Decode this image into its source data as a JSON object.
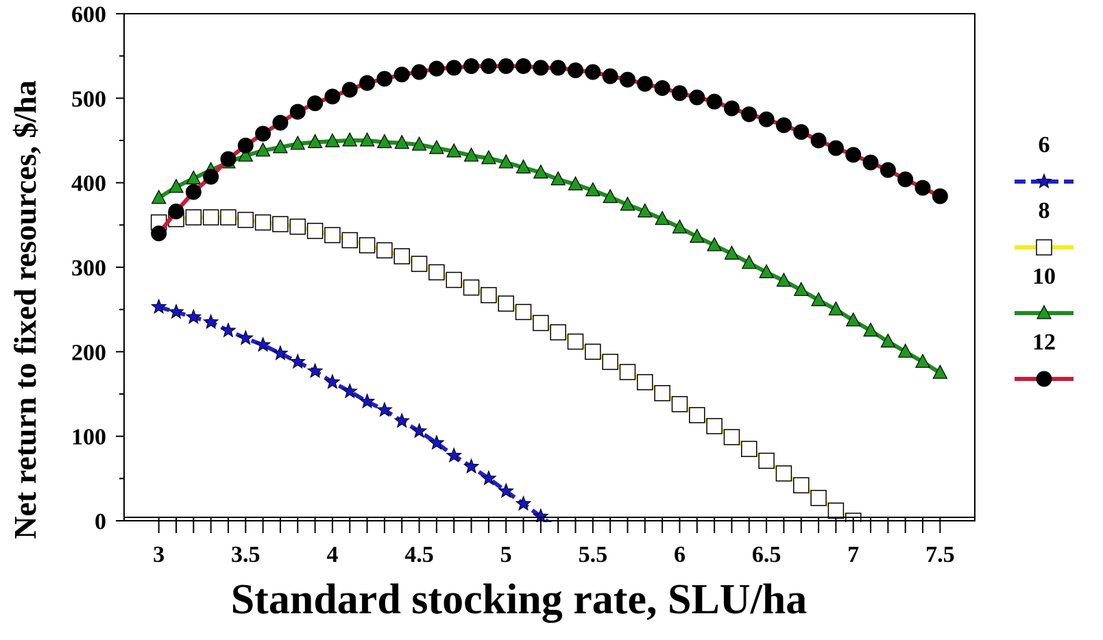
{
  "chart_data": {
    "type": "line",
    "title": "",
    "xlabel": "Standard stocking rate, SLU/ha",
    "ylabel": "Net return to fixed resources, $/ha",
    "xlim": [
      2.8,
      7.7
    ],
    "ylim": [
      0,
      600
    ],
    "x_ticks": [
      3,
      3.5,
      4,
      4.5,
      5,
      5.5,
      6,
      6.5,
      7,
      7.5
    ],
    "x_tick_labels": [
      "3",
      "3.5",
      "4",
      "4.5",
      "5",
      "5.5",
      "6",
      "6.5",
      "7",
      "7.5"
    ],
    "y_ticks": [
      0,
      100,
      200,
      300,
      400,
      500,
      600
    ],
    "y_tick_labels": [
      "0",
      "100",
      "200",
      "300",
      "400",
      "500",
      "600"
    ],
    "grid": false,
    "legend_position": "right",
    "series": [
      {
        "name": "6",
        "color": "#1f1fcc",
        "line_style": "dashed",
        "marker": "star",
        "marker_fill": "#1515c8",
        "x": [
          3,
          3.1,
          3.2,
          3.3,
          3.4,
          3.5,
          3.6,
          3.7,
          3.8,
          3.9,
          4,
          4.1,
          4.2,
          4.3,
          4.4,
          4.5,
          4.6,
          4.7,
          4.8,
          4.9,
          5,
          5.1,
          5.2
        ],
        "y": [
          253,
          247,
          241,
          235,
          225,
          216,
          208,
          198,
          188,
          177,
          164,
          153,
          141,
          131,
          118,
          106,
          92,
          77,
          64,
          50,
          35,
          20,
          5
        ]
      },
      {
        "name": "8",
        "color": "#f2ee1a",
        "line_style": "solid",
        "marker": "square",
        "marker_fill": "#ffffff",
        "x": [
          3,
          3.1,
          3.2,
          3.3,
          3.4,
          3.5,
          3.6,
          3.7,
          3.8,
          3.9,
          4,
          4.1,
          4.2,
          4.3,
          4.4,
          4.5,
          4.6,
          4.7,
          4.8,
          4.9,
          5,
          5.1,
          5.2,
          5.3,
          5.4,
          5.5,
          5.6,
          5.7,
          5.8,
          5.9,
          6,
          6.1,
          6.2,
          6.3,
          6.4,
          6.5,
          6.6,
          6.7,
          6.8,
          6.9,
          7
        ],
        "y": [
          353,
          357,
          359,
          359,
          359,
          356,
          353,
          351,
          348,
          343,
          338,
          332,
          326,
          320,
          313,
          304,
          294,
          285,
          276,
          267,
          257,
          247,
          234,
          223,
          212,
          200,
          188,
          176,
          164,
          151,
          138,
          125,
          112,
          99,
          85,
          71,
          56,
          42,
          27,
          12,
          0
        ]
      },
      {
        "name": "10",
        "color": "#1e8c1e",
        "line_style": "solid",
        "marker": "triangle",
        "marker_fill": "#1f9a1f",
        "x": [
          3,
          3.1,
          3.2,
          3.3,
          3.4,
          3.5,
          3.6,
          3.7,
          3.8,
          3.9,
          4,
          4.1,
          4.2,
          4.3,
          4.4,
          4.5,
          4.6,
          4.7,
          4.8,
          4.9,
          5,
          5.1,
          5.2,
          5.3,
          5.4,
          5.5,
          5.6,
          5.7,
          5.8,
          5.9,
          6,
          6.1,
          6.2,
          6.3,
          6.4,
          6.5,
          6.6,
          6.7,
          6.8,
          6.9,
          7,
          7.1,
          7.2,
          7.3,
          7.4,
          7.5
        ],
        "y": [
          382,
          395,
          405,
          415,
          424,
          432,
          438,
          442,
          446,
          448,
          449,
          450,
          450,
          448,
          447,
          445,
          441,
          437,
          432,
          429,
          424,
          418,
          412,
          404,
          398,
          391,
          383,
          374,
          366,
          357,
          347,
          336,
          326,
          316,
          305,
          294,
          284,
          273,
          261,
          250,
          237,
          225,
          212,
          200,
          188,
          175
        ]
      },
      {
        "name": "12",
        "color": "#cc1a3a",
        "line_style": "solid",
        "marker": "circle",
        "marker_fill": "#000000",
        "x": [
          3,
          3.1,
          3.2,
          3.3,
          3.4,
          3.5,
          3.6,
          3.7,
          3.8,
          3.9,
          4,
          4.1,
          4.2,
          4.3,
          4.4,
          4.5,
          4.6,
          4.7,
          4.8,
          4.9,
          5,
          5.1,
          5.2,
          5.3,
          5.4,
          5.5,
          5.6,
          5.7,
          5.8,
          5.9,
          6,
          6.1,
          6.2,
          6.3,
          6.4,
          6.5,
          6.6,
          6.7,
          6.8,
          6.9,
          7,
          7.1,
          7.2,
          7.3,
          7.4,
          7.5
        ],
        "y": [
          340,
          366,
          389,
          407,
          428,
          444,
          458,
          471,
          484,
          494,
          502,
          510,
          518,
          523,
          528,
          531,
          535,
          536,
          538,
          538,
          538,
          538,
          536,
          536,
          533,
          531,
          526,
          522,
          517,
          512,
          506,
          501,
          496,
          488,
          481,
          475,
          468,
          460,
          450,
          441,
          433,
          424,
          415,
          404,
          394,
          384
        ]
      }
    ]
  }
}
